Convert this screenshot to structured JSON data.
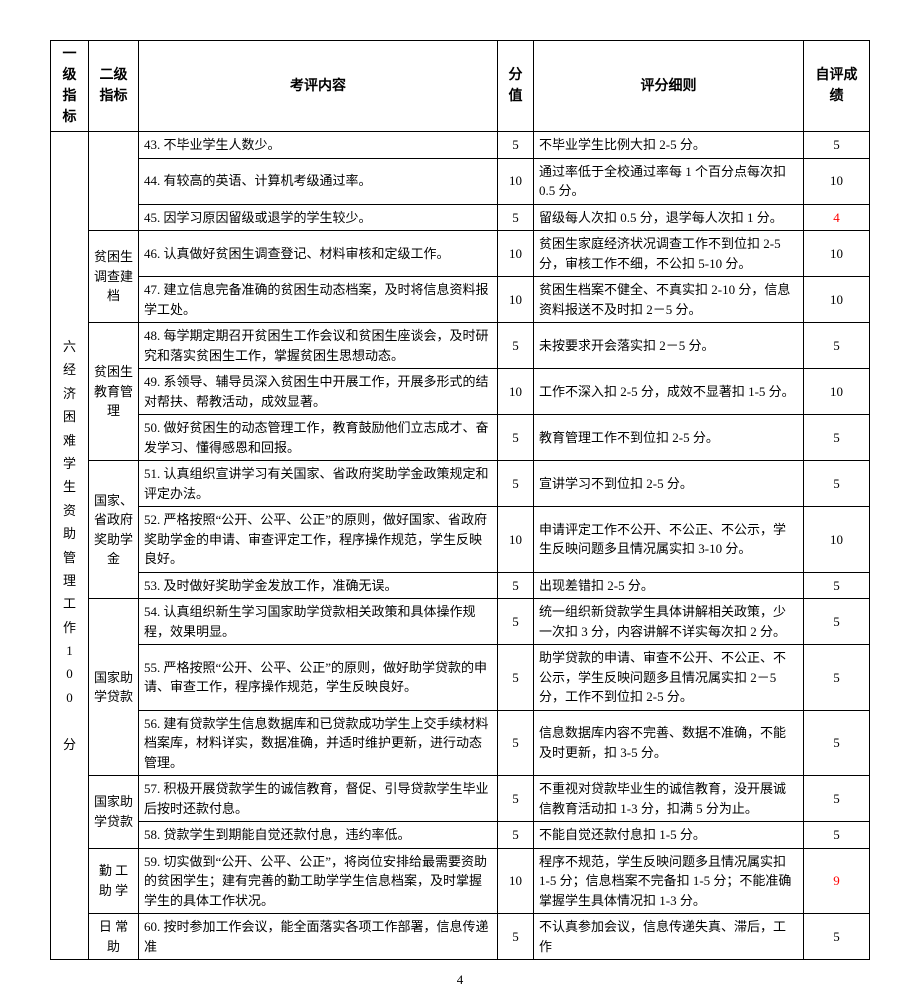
{
  "header": {
    "level1": "一级指标",
    "level2": "二级指标",
    "content": "考评内容",
    "score": "分值",
    "rule": "评分细则",
    "self": "自评成绩"
  },
  "level1_label": "六\n经济困难学生资助管理工作\n100 分",
  "groups": [
    {
      "label": "",
      "rows": [
        {
          "content": "43. 不毕业学生人数少。",
          "score": "5",
          "rule": "不毕业学生比例大扣 2-5 分。",
          "self": "5",
          "self_red": false
        },
        {
          "content": "44. 有较高的英语、计算机考级通过率。",
          "score": "10",
          "rule": "通过率低于全校通过率每 1 个百分点每次扣 0.5 分。",
          "self": "10",
          "self_red": false
        },
        {
          "content": "45. 因学习原因留级或退学的学生较少。",
          "score": "5",
          "rule": "留级每人次扣 0.5 分，退学每人次扣 1 分。",
          "self": "4",
          "self_red": true
        }
      ]
    },
    {
      "label": "贫困生调查建档",
      "rows": [
        {
          "content": "46. 认真做好贫困生调查登记、材料审核和定级工作。",
          "score": "10",
          "rule": "贫困生家庭经济状况调查工作不到位扣 2-5 分，审核工作不细，不公扣 5-10 分。",
          "self": "10",
          "self_red": false
        },
        {
          "content": "47. 建立信息完备准确的贫困生动态档案，及时将信息资料报学工处。",
          "score": "10",
          "rule": "贫困生档案不健全、不真实扣 2-10 分，信息资料报送不及时扣 2－5 分。",
          "self": "10",
          "self_red": false
        }
      ]
    },
    {
      "label": "贫困生教育管理",
      "rows": [
        {
          "content": "48. 每学期定期召开贫困生工作会议和贫困生座谈会，及时研究和落实贫困生工作，掌握贫困生思想动态。",
          "score": "5",
          "rule": "未按要求开会落实扣 2－5 分。",
          "self": "5",
          "self_red": false
        },
        {
          "content": "49. 系领导、辅导员深入贫困生中开展工作，开展多形式的结对帮扶、帮教活动，成效显著。",
          "score": "10",
          "rule": "工作不深入扣 2-5 分，成效不显著扣 1-5 分。",
          "self": "10",
          "self_red": false
        },
        {
          "content": "50. 做好贫困生的动态管理工作，教育鼓励他们立志成才、奋发学习、懂得感恩和回报。",
          "score": "5",
          "rule": "教育管理工作不到位扣 2-5 分。",
          "self": "5",
          "self_red": false
        }
      ]
    },
    {
      "label": "国家、省政府奖助学金",
      "rows": [
        {
          "content": "51. 认真组织宣讲学习有关国家、省政府奖助学金政策规定和评定办法。",
          "score": "5",
          "rule": "宣讲学习不到位扣 2-5 分。",
          "self": "5",
          "self_red": false
        },
        {
          "content": "52. 严格按照“公开、公平、公正”的原则，做好国家、省政府奖助学金的申请、审查评定工作，程序操作规范，学生反映良好。",
          "score": "10",
          "rule": "申请评定工作不公开、不公正、不公示，学生反映问题多且情况属实扣 3-10 分。",
          "self": "10",
          "self_red": false
        },
        {
          "content": "53. 及时做好奖助学金发放工作，准确无误。",
          "score": "5",
          "rule": "出现差错扣 2-5 分。",
          "self": "5",
          "self_red": false
        }
      ]
    },
    {
      "label": "国家助学贷款",
      "rows": [
        {
          "content": "54. 认真组织新生学习国家助学贷款相关政策和具体操作规程，效果明显。",
          "score": "5",
          "rule": "统一组织新贷款学生具体讲解相关政策，少一次扣 3 分，内容讲解不详实每次扣 2 分。",
          "self": "5",
          "self_red": false
        },
        {
          "content": "55. 严格按照“公开、公平、公正”的原则，做好助学贷款的申请、审查工作，程序操作规范，学生反映良好。",
          "score": "5",
          "rule": "助学贷款的申请、审查不公开、不公正、不公示，学生反映问题多且情况属实扣 2－5 分，工作不到位扣 2-5 分。",
          "self": "5",
          "self_red": false
        },
        {
          "content": "56. 建有贷款学生信息数据库和已贷款成功学生上交手续材料档案库，材料详实，数据准确，并适时维护更新，进行动态管理。",
          "score": "5",
          "rule": "信息数据库内容不完善、数据不准确，不能及时更新，扣 3-5 分。",
          "self": "5",
          "self_red": false
        }
      ]
    },
    {
      "label": "国家助学贷款",
      "rows": [
        {
          "content": "57. 积极开展贷款学生的诚信教育，督促、引导贷款学生毕业后按时还款付息。",
          "score": "5",
          "rule": "不重视对贷款毕业生的诚信教育，没开展诚信教育活动扣 1-3 分，扣满 5 分为止。",
          "self": "5",
          "self_red": false
        },
        {
          "content": "58. 贷款学生到期能自觉还款付息，违约率低。",
          "score": "5",
          "rule": "不能自觉还款付息扣 1-5 分。",
          "self": "5",
          "self_red": false
        }
      ]
    },
    {
      "label": "勤 工 助 学",
      "rows": [
        {
          "content": "59. 切实做到“公开、公平、公正”，将岗位安排给最需要资助的贫困学生；建有完善的勤工助学学生信息档案，及时掌握学生的具体工作状况。",
          "score": "10",
          "rule": "程序不规范，学生反映问题多且情况属实扣 1-5 分；信息档案不完备扣 1-5 分；不能准确掌握学生具体情况扣 1-3 分。",
          "self": "9",
          "self_red": true
        }
      ]
    },
    {
      "label": "日 常 助",
      "rows": [
        {
          "content": "60. 按时参加工作会议，能全面落实各项工作部署，信息传递准",
          "score": "5",
          "rule": "不认真参加会议，信息传递失真、滞后，工作",
          "self": "5",
          "self_red": false
        }
      ]
    }
  ],
  "page_number": "4"
}
